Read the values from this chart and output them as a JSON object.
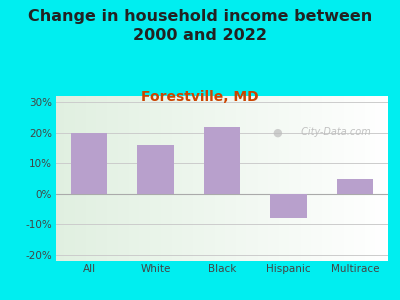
{
  "title": "Change in household income between\n2000 and 2022",
  "subtitle": "Forestville, MD",
  "categories": [
    "All",
    "White",
    "Black",
    "Hispanic",
    "Multirace"
  ],
  "values": [
    20,
    16,
    22,
    -8,
    5
  ],
  "bar_color": "#b8a0cc",
  "title_fontsize": 11.5,
  "subtitle_fontsize": 10,
  "subtitle_color": "#cc4400",
  "tick_label_color": "#444444",
  "outer_bg_color": "#00eef0",
  "ylim": [
    -22,
    32
  ],
  "yticks": [
    -20,
    -10,
    0,
    10,
    20,
    30
  ],
  "ytick_labels": [
    "-20%",
    "-10%",
    "0%",
    "10%",
    "20%",
    "30%"
  ],
  "watermark": " City-Data.com",
  "watermark_color": "#bbbbbb",
  "grid_color": "#cccccc"
}
